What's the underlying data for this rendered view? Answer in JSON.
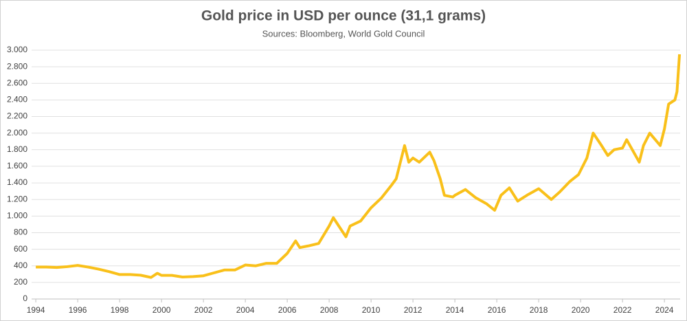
{
  "chart_data": {
    "type": "line",
    "title": "Gold price in USD per ounce (31,1 grams)",
    "subtitle": "Sources: Bloomberg, World Gold Council",
    "x": [
      1994,
      1994.5,
      1995,
      1995.5,
      1996,
      1996.5,
      1997,
      1997.5,
      1998,
      1998.5,
      1999,
      1999.5,
      1999.8,
      2000,
      2000.5,
      2001,
      2001.5,
      2002,
      2002.5,
      2003,
      2003.5,
      2004,
      2004.5,
      2005,
      2005.5,
      2006,
      2006.4,
      2006.6,
      2007,
      2007.5,
      2008,
      2008.2,
      2008.8,
      2009,
      2009.5,
      2010,
      2010.5,
      2011,
      2011.2,
      2011.6,
      2011.8,
      2012,
      2012.3,
      2012.8,
      2013,
      2013.3,
      2013.5,
      2013.9,
      2014,
      2014.5,
      2015,
      2015.5,
      2015.9,
      2016.2,
      2016.6,
      2017,
      2017.5,
      2018,
      2018.6,
      2019,
      2019.5,
      2019.9,
      2020.3,
      2020.6,
      2021,
      2021.3,
      2021.6,
      2022,
      2022.2,
      2022.8,
      2023,
      2023.3,
      2023.8,
      2024,
      2024.2,
      2024.5,
      2024.6,
      2024.72
    ],
    "series": [
      {
        "name": "Gold price",
        "color": "#f9c01a",
        "values": [
          385,
          385,
          380,
          390,
          405,
          385,
          360,
          330,
          295,
          295,
          287,
          260,
          310,
          285,
          285,
          265,
          270,
          280,
          315,
          350,
          350,
          410,
          400,
          430,
          430,
          550,
          700,
          620,
          640,
          670,
          880,
          980,
          750,
          880,
          940,
          1100,
          1220,
          1380,
          1450,
          1850,
          1650,
          1700,
          1650,
          1770,
          1670,
          1450,
          1250,
          1230,
          1250,
          1320,
          1220,
          1150,
          1070,
          1250,
          1340,
          1180,
          1260,
          1330,
          1200,
          1290,
          1420,
          1500,
          1700,
          2000,
          1850,
          1730,
          1800,
          1820,
          1920,
          1650,
          1850,
          2000,
          1850,
          2050,
          2350,
          2400,
          2500,
          2950
        ]
      }
    ],
    "xlim": [
      1993.8,
      2024.75
    ],
    "xticks": [
      1994,
      1996,
      1998,
      2000,
      2002,
      2004,
      2006,
      2008,
      2010,
      2012,
      2014,
      2016,
      2018,
      2020,
      2022,
      2024
    ],
    "ylim": [
      0,
      3000
    ],
    "yticks": [
      0,
      200,
      400,
      600,
      800,
      {
        "value": 1000,
        "label": "1.000"
      },
      {
        "value": 1200,
        "label": "1.200"
      },
      {
        "value": 1400,
        "label": "1.400"
      },
      {
        "value": 1600,
        "label": "1.600"
      },
      {
        "value": 1800,
        "label": "1.800"
      },
      {
        "value": 2000,
        "label": "2.000"
      },
      {
        "value": 2200,
        "label": "2.200"
      },
      {
        "value": 2400,
        "label": "2.400"
      },
      {
        "value": 2600,
        "label": "2.600"
      },
      {
        "value": 2800,
        "label": "2.800"
      },
      {
        "value": 3000,
        "label": "3.000"
      }
    ],
    "grid": true
  }
}
